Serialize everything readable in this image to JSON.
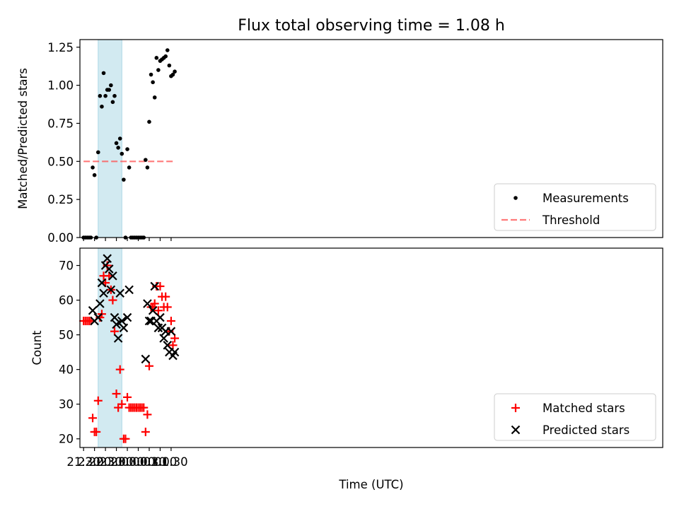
{
  "title": "Flux total observing time = 1.08 h",
  "colors": {
    "shade": "#add8e6",
    "threshold": "#ff4d4d",
    "matched": "#ff0000",
    "predicted": "#000000",
    "measurements": "#000000"
  },
  "chart_data": [
    {
      "type": "scatter",
      "ylabel": "Matched/Predicted stars",
      "xlim": [
        "21:20",
        "23:58+1"
      ],
      "ylim": [
        0,
        1.3
      ],
      "yticks": [
        0,
        0.25,
        0.5,
        0.75,
        1.0,
        1.25
      ],
      "ytick_labels": [
        "0.00",
        "0.25",
        "0.50",
        "0.75",
        "1.00",
        "1.25"
      ],
      "shaded_span": [
        "22:10",
        "23:15"
      ],
      "threshold": {
        "name": "Threshold",
        "value": 0.5,
        "x_range": [
          "21:30",
          "01:40"
        ],
        "style": "dashed"
      },
      "legend": {
        "position": "lower-right",
        "entries": [
          "Measurements",
          "Threshold"
        ]
      },
      "series": [
        {
          "name": "Measurements",
          "marker": "dot",
          "points": [
            [
              "21:30",
              0.0
            ],
            [
              "21:35",
              0.0
            ],
            [
              "21:40",
              0.0
            ],
            [
              "21:45",
              0.0
            ],
            [
              "21:50",
              0.0
            ],
            [
              "21:55",
              0.46
            ],
            [
              "22:00",
              0.41
            ],
            [
              "22:05",
              0.0
            ],
            [
              "22:10",
              0.56
            ],
            [
              "22:15",
              0.93
            ],
            [
              "22:20",
              0.86
            ],
            [
              "22:25",
              1.08
            ],
            [
              "22:30",
              0.93
            ],
            [
              "22:35",
              0.97
            ],
            [
              "22:40",
              0.97
            ],
            [
              "22:45",
              1.0
            ],
            [
              "22:50",
              0.89
            ],
            [
              "22:55",
              0.93
            ],
            [
              "23:00",
              0.62
            ],
            [
              "23:05",
              0.59
            ],
            [
              "23:10",
              0.65
            ],
            [
              "23:15",
              0.55
            ],
            [
              "23:20",
              0.38
            ],
            [
              "23:25",
              0.0
            ],
            [
              "23:30",
              0.58
            ],
            [
              "23:35",
              0.46
            ],
            [
              "23:40",
              0.0
            ],
            [
              "23:45",
              0.0
            ],
            [
              "23:50",
              0.0
            ],
            [
              "23:55",
              0.0
            ],
            [
              "00:00",
              0.0
            ],
            [
              "00:05",
              0.0
            ],
            [
              "00:10",
              0.0
            ],
            [
              "00:15",
              0.0
            ],
            [
              "00:20",
              0.51
            ],
            [
              "00:25",
              0.46
            ],
            [
              "00:30",
              0.76
            ],
            [
              "00:35",
              1.07
            ],
            [
              "00:40",
              1.02
            ],
            [
              "00:45",
              0.92
            ],
            [
              "00:50",
              1.18
            ],
            [
              "00:55",
              1.1
            ],
            [
              "01:00",
              1.16
            ],
            [
              "01:05",
              1.17
            ],
            [
              "01:10",
              1.18
            ],
            [
              "01:15",
              1.19
            ],
            [
              "01:20",
              1.23
            ],
            [
              "01:25",
              1.13
            ],
            [
              "01:30",
              1.06
            ],
            [
              "01:35",
              1.07
            ],
            [
              "01:40",
              1.09
            ]
          ]
        }
      ]
    },
    {
      "type": "scatter",
      "ylabel": "Count",
      "xlabel": "Time (UTC)",
      "xlim": [
        "21:20",
        "23:58+1"
      ],
      "ylim": [
        17.5,
        75
      ],
      "yticks": [
        20,
        30,
        40,
        50,
        60,
        70
      ],
      "ytick_labels": [
        "20",
        "30",
        "40",
        "50",
        "60",
        "70"
      ],
      "xticks": [
        "21:30",
        "22:00",
        "22:30",
        "23:00",
        "23:30",
        "00:00",
        "00:30",
        "01:00",
        "01:30"
      ],
      "shaded_span": [
        "22:10",
        "23:15"
      ],
      "legend": {
        "position": "lower-right",
        "entries": [
          "Matched stars",
          "Predicted stars"
        ]
      },
      "series": [
        {
          "name": "Matched stars",
          "marker": "plus",
          "points": [
            [
              "21:30",
              54
            ],
            [
              "21:35",
              54
            ],
            [
              "21:40",
              54
            ],
            [
              "21:45",
              54
            ],
            [
              "21:50",
              54
            ],
            [
              "21:55",
              26
            ],
            [
              "22:00",
              22
            ],
            [
              "22:05",
              22
            ],
            [
              "22:10",
              31
            ],
            [
              "22:15",
              55
            ],
            [
              "22:20",
              56
            ],
            [
              "22:25",
              67
            ],
            [
              "22:30",
              65
            ],
            [
              "22:35",
              70
            ],
            [
              "22:40",
              67
            ],
            [
              "22:45",
              63
            ],
            [
              "22:50",
              60
            ],
            [
              "22:55",
              51
            ],
            [
              "23:00",
              33
            ],
            [
              "23:05",
              29
            ],
            [
              "23:10",
              40
            ],
            [
              "23:15",
              30
            ],
            [
              "23:20",
              20
            ],
            [
              "23:25",
              20
            ],
            [
              "23:30",
              32
            ],
            [
              "23:35",
              29
            ],
            [
              "23:40",
              29
            ],
            [
              "23:45",
              29
            ],
            [
              "23:50",
              29
            ],
            [
              "23:55",
              29
            ],
            [
              "00:00",
              29
            ],
            [
              "00:05",
              29
            ],
            [
              "00:10",
              29
            ],
            [
              "00:15",
              29
            ],
            [
              "00:20",
              22
            ],
            [
              "00:25",
              27
            ],
            [
              "00:30",
              41
            ],
            [
              "00:35",
              58
            ],
            [
              "00:40",
              58
            ],
            [
              "00:45",
              59
            ],
            [
              "00:50",
              64
            ],
            [
              "00:55",
              57
            ],
            [
              "01:00",
              64
            ],
            [
              "01:05",
              61
            ],
            [
              "01:10",
              58
            ],
            [
              "01:15",
              61
            ],
            [
              "01:20",
              58
            ],
            [
              "01:25",
              51
            ],
            [
              "01:30",
              54
            ],
            [
              "01:35",
              47
            ],
            [
              "01:40",
              49
            ]
          ]
        },
        {
          "name": "Predicted stars",
          "marker": "x",
          "points": [
            [
              "21:55",
              57
            ],
            [
              "22:00",
              54
            ],
            [
              "22:10",
              55
            ],
            [
              "22:15",
              59
            ],
            [
              "22:20",
              65
            ],
            [
              "22:25",
              62
            ],
            [
              "22:30",
              70
            ],
            [
              "22:35",
              72
            ],
            [
              "22:40",
              69
            ],
            [
              "22:45",
              63
            ],
            [
              "22:50",
              67
            ],
            [
              "22:55",
              55
            ],
            [
              "23:00",
              53
            ],
            [
              "23:05",
              49
            ],
            [
              "23:10",
              62
            ],
            [
              "23:15",
              54
            ],
            [
              "23:20",
              52
            ],
            [
              "23:30",
              55
            ],
            [
              "23:35",
              63
            ],
            [
              "00:20",
              43
            ],
            [
              "00:25",
              59
            ],
            [
              "00:30",
              54
            ],
            [
              "00:35",
              54
            ],
            [
              "00:40",
              57
            ],
            [
              "00:45",
              64
            ],
            [
              "00:50",
              54
            ],
            [
              "00:55",
              52
            ],
            [
              "01:00",
              55
            ],
            [
              "01:05",
              52
            ],
            [
              "01:10",
              49
            ],
            [
              "01:15",
              51
            ],
            [
              "01:20",
              47
            ],
            [
              "01:25",
              45
            ],
            [
              "01:30",
              51
            ],
            [
              "01:35",
              44
            ],
            [
              "01:40",
              45
            ]
          ]
        }
      ]
    }
  ]
}
